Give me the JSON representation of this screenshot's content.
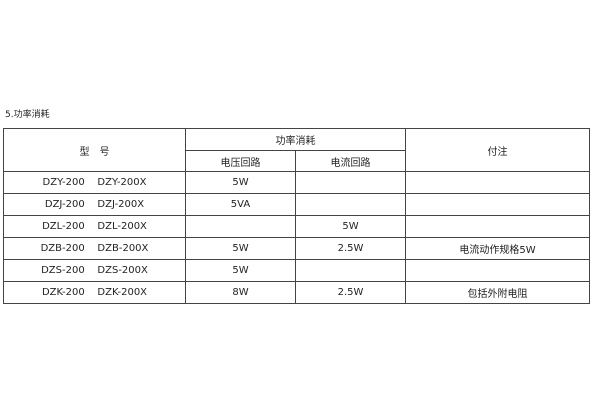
{
  "section_title": "5.功率消耗",
  "table": {
    "headers": {
      "model": "型　号",
      "power": "功率消耗",
      "voltage_circuit": "电压回路",
      "current_circuit": "电流回路",
      "notes": "付注"
    },
    "rows": [
      {
        "model": "DZY-200    DZY-200X",
        "voltage": "5W",
        "current": "",
        "note": ""
      },
      {
        "model": "DZJ-200    DZJ-200X",
        "voltage": "5VA",
        "current": "",
        "note": ""
      },
      {
        "model": "DZL-200    DZL-200X",
        "voltage": "",
        "current": "5W",
        "note": ""
      },
      {
        "model": "DZB-200    DZB-200X",
        "voltage": "5W",
        "current": "2.5W",
        "note": "电流动作规格5W"
      },
      {
        "model": "DZS-200    DZS-200X",
        "voltage": "5W",
        "current": "",
        "note": ""
      },
      {
        "model": "DZK-200    DZK-200X",
        "voltage": "8W",
        "current": "2.5W",
        "note": "包括外附电阻"
      }
    ]
  }
}
